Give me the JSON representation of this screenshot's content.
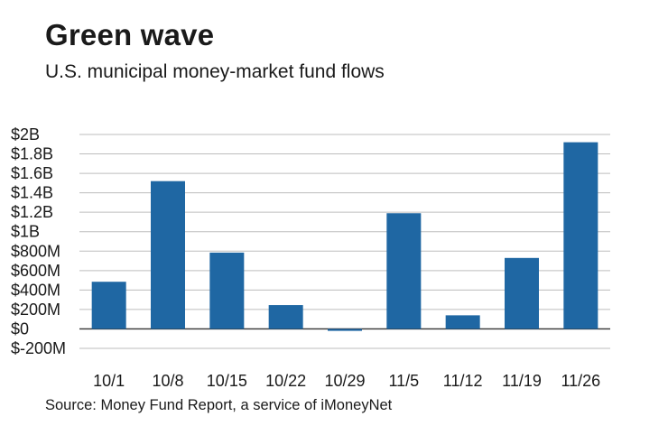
{
  "title": "Green wave",
  "subtitle": "U.S. municipal money-market fund flows",
  "source": "Source: Money Fund Report, a service of iMoneyNet",
  "colors": {
    "bar": "#1f67a3",
    "grid": "#bdbdbd",
    "zero_line": "#333333",
    "text": "#1a1a1a"
  },
  "chart_data": {
    "type": "bar",
    "title": "Green wave",
    "subtitle": "U.S. municipal money-market fund flows",
    "xlabel": "",
    "ylabel": "",
    "grid": true,
    "legend": "none",
    "ylim": [
      -200,
      2000
    ],
    "y_ticks": [
      2000,
      1800,
      1600,
      1400,
      1200,
      1000,
      800,
      600,
      400,
      200,
      0,
      -200
    ],
    "y_tick_labels": [
      "$2B",
      "$1.8B",
      "$1.6B",
      "$1.4B",
      "$1.2B",
      "$1B",
      "$800M",
      "$600M",
      "$400M",
      "$200M",
      "$0",
      "$-200M"
    ],
    "value_units": "millions of dollars",
    "categories": [
      "10/1",
      "10/8",
      "10/15",
      "10/22",
      "10/29",
      "11/5",
      "11/12",
      "11/19",
      "11/26"
    ],
    "values": [
      485,
      1520,
      785,
      245,
      -20,
      1190,
      140,
      730,
      1920
    ]
  }
}
